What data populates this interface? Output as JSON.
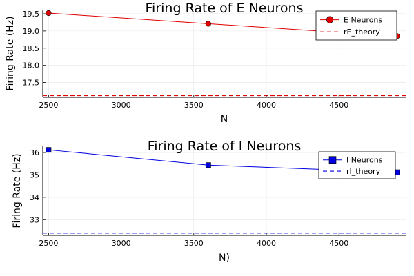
{
  "chart_data": [
    {
      "type": "line",
      "title": "Firing Rate of E Neurons",
      "xlabel": "N",
      "ylabel": "Firing Rate (Hz)",
      "x": [
        2500,
        3600,
        4900
      ],
      "xlim": [
        2460,
        4960
      ],
      "ylim": [
        17.07,
        19.62
      ],
      "xticks": [
        2500,
        3000,
        3500,
        4000,
        4500
      ],
      "yticks": [
        17.5,
        18.0,
        18.5,
        19.0,
        19.5
      ],
      "xtick_labels": [
        "2500",
        "3000",
        "3500",
        "4000",
        "4500"
      ],
      "ytick_labels": [
        "17.5",
        "18.0",
        "18.5",
        "19.0",
        "19.5"
      ],
      "grid": true,
      "legend_position": "top-right",
      "series": [
        {
          "name": "E Neurons",
          "values": [
            19.52,
            19.21,
            18.85
          ],
          "color": "#e00000",
          "marker": "circle",
          "style": "solid"
        },
        {
          "name": "rE_theory",
          "constant": 17.12,
          "color": "#e00000",
          "style": "dashed"
        }
      ]
    },
    {
      "type": "line",
      "title": "Firing Rate of I Neurons",
      "xlabel": "N)",
      "ylabel": "Firing Rate (Hz)",
      "x": [
        2500,
        3600,
        4900
      ],
      "xlim": [
        2460,
        4960
      ],
      "ylim": [
        32.3,
        36.28
      ],
      "xticks": [
        2500,
        3000,
        3500,
        4000,
        4500
      ],
      "yticks": [
        33,
        34,
        35,
        36
      ],
      "xtick_labels": [
        "2500",
        "3000",
        "3500",
        "4000",
        "4500"
      ],
      "ytick_labels": [
        "33",
        "34",
        "35",
        "36"
      ],
      "grid": true,
      "legend_position": "top-right",
      "series": [
        {
          "name": "I Neurons",
          "values": [
            36.12,
            35.44,
            35.12
          ],
          "color": "#0000e0",
          "marker": "square",
          "style": "solid"
        },
        {
          "name": "rI_theory",
          "constant": 32.4,
          "color": "#0000e0",
          "style": "dashed"
        }
      ]
    }
  ]
}
